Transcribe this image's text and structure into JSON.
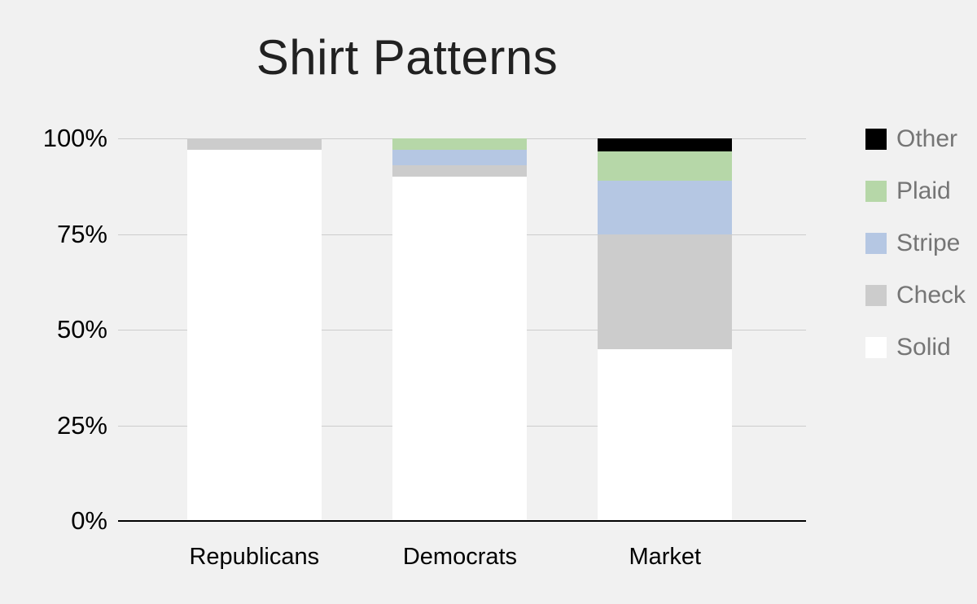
{
  "title": "Shirt Patterns",
  "chart_data": {
    "type": "bar",
    "variant": "stacked-percent",
    "title": "Shirt Patterns",
    "categories": [
      "Republicans",
      "Democrats",
      "Market"
    ],
    "series": [
      {
        "name": "Solid",
        "color": "#ffffff",
        "values": [
          97,
          90,
          45
        ]
      },
      {
        "name": "Check",
        "color": "#cccccc",
        "values": [
          3,
          3,
          30
        ]
      },
      {
        "name": "Stripe",
        "color": "#b5c7e3",
        "values": [
          0,
          4,
          14
        ]
      },
      {
        "name": "Plaid",
        "color": "#b6d7a8",
        "values": [
          0,
          3,
          7.5
        ]
      },
      {
        "name": "Other",
        "color": "#000000",
        "values": [
          0,
          0,
          3.5
        ]
      }
    ],
    "y_ticks": [
      "0%",
      "25%",
      "50%",
      "75%",
      "100%"
    ],
    "ylim": [
      0,
      100
    ],
    "grid": true,
    "legend_position": "right",
    "legend_order": [
      "Other",
      "Plaid",
      "Stripe",
      "Check",
      "Solid"
    ]
  },
  "colors": {
    "background": "#f1f1f1",
    "gridline": "#cccccc",
    "axis_line": "#000000",
    "title_text": "#212121",
    "tick_text": "#000000",
    "legend_text": "#757575"
  }
}
